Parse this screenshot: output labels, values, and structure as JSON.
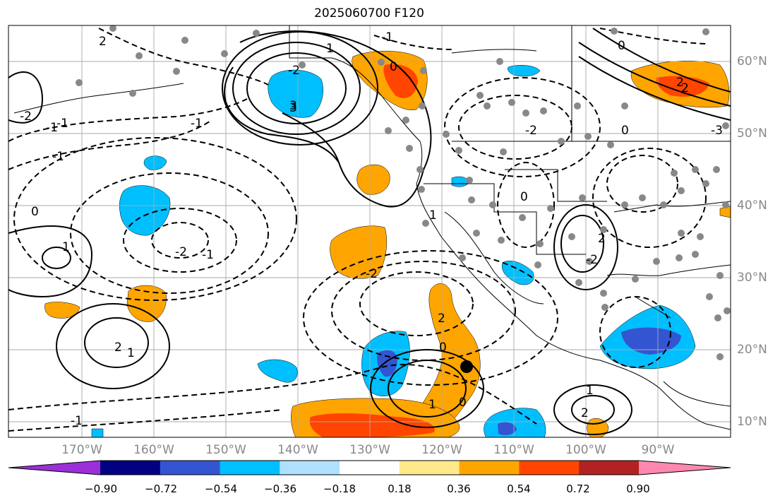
{
  "title": "2025060700 F120",
  "lat_labels": [
    "60°N",
    "50°N",
    "40°N",
    "30°N",
    "20°N",
    "10°N"
  ],
  "lon_labels": [
    "170°W",
    "160°W",
    "150°W",
    "140°W",
    "130°W",
    "120°W",
    "110°W",
    "100°W",
    "90°W"
  ],
  "colorbar": {
    "colors": [
      "#9b30d9",
      "#000080",
      "#3455d1",
      "#00bfff",
      "#b0e0ff",
      "#ffffff",
      "#ffe98a",
      "#ffa500",
      "#ff4500",
      "#b22222",
      "#ff88b0"
    ],
    "labels": [
      "−0.90",
      "−0.72",
      "−0.54",
      "−0.36",
      "−0.18",
      "0.18",
      "0.36",
      "0.54",
      "0.72",
      "0.90"
    ]
  },
  "contour_labels": [
    "1",
    "0",
    "-1",
    "-2",
    "2",
    "3",
    "-3",
    "1",
    "-1",
    "0",
    "-1",
    "-2",
    "2",
    "1",
    "2",
    "-2",
    "0",
    "-1",
    "0",
    "1",
    "2",
    "-2",
    "2",
    "-1",
    "0",
    "-2",
    "-1",
    "1",
    "2",
    "0",
    "-2",
    "-1",
    "0",
    "1",
    "2",
    "3"
  ],
  "colors": {
    "positive_fill": "#ffa500",
    "strong_positive_fill": "#ff4500",
    "negative_fill": "#00bfff",
    "strong_negative_fill": "#3455d1",
    "station_dot": "#888888"
  }
}
